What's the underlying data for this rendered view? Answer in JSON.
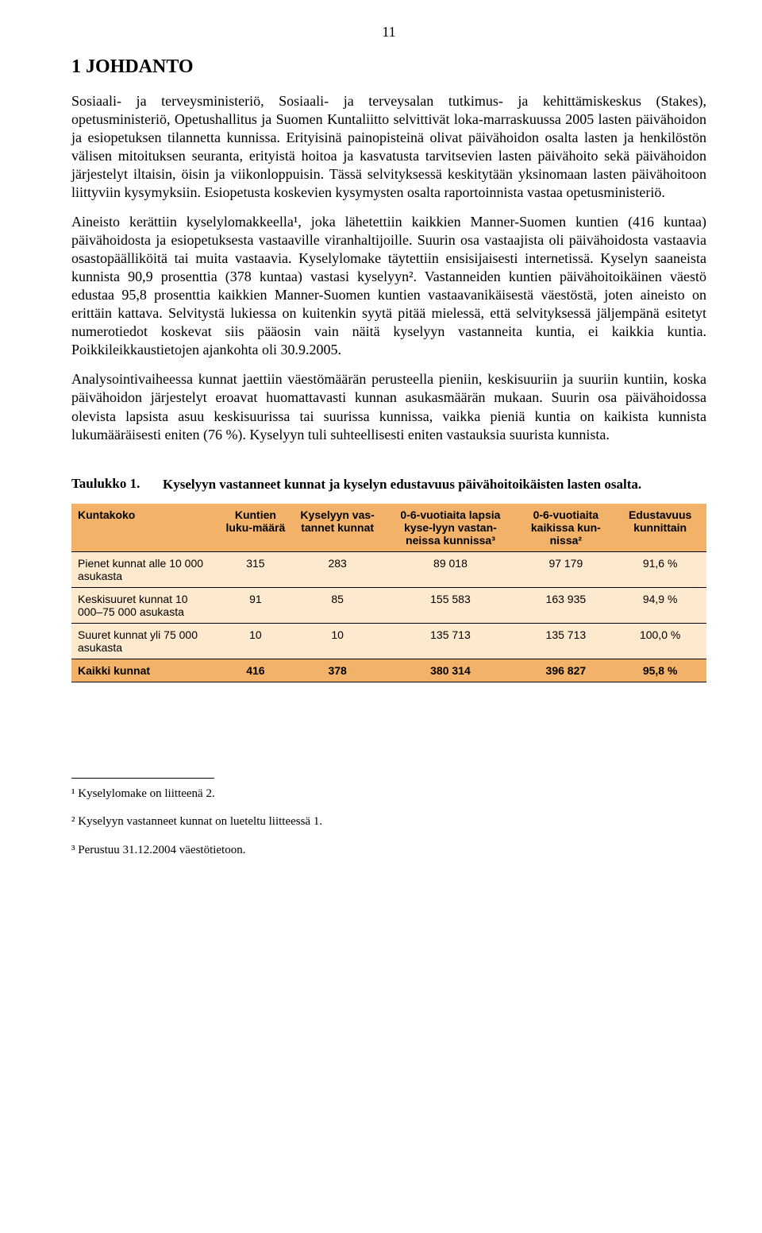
{
  "page_number": "11",
  "heading": "1 JOHDANTO",
  "paragraphs": {
    "p1": "Sosiaali- ja terveysministeriö, Sosiaali- ja terveysalan tutkimus- ja kehittämiskeskus (Stakes), opetusministeriö, Opetushallitus ja Suomen Kuntaliitto selvittivät loka-marraskuussa 2005 lasten päivähoidon ja esiopetuksen tilannetta kunnissa. Erityisinä painopisteinä olivat päivähoidon osalta lasten ja henkilöstön välisen mitoituksen seuranta, erityistä hoitoa ja kasvatusta tarvitsevien lasten päivähoito sekä päivähoidon järjestelyt iltaisin, öisin ja viikonloppuisin. Tässä selvityksessä keskitytään yksinomaan lasten päivähoitoon liittyviin kysymyksiin. Esiopetusta koskevien kysymysten osalta raportoinnista vastaa opetusministeriö.",
    "p2": "Aineisto kerättiin kyselylomakkeella¹, joka lähetettiin kaikkien Manner-Suomen kuntien (416 kuntaa) päivähoidosta ja esiopetuksesta vastaaville viranhaltijoille. Suurin osa vastaajista oli päivähoidosta vastaavia osastopäälliköitä tai muita vastaavia. Kyselylomake täytettiin ensisijaisesti internetissä. Kyselyn saaneista kunnista 90,9 prosenttia (378 kuntaa) vastasi kyselyyn². Vastanneiden kuntien päivähoitoikäinen väestö edustaa 95,8 prosenttia kaikkien Manner-Suomen kuntien vastaavanikäisestä väestöstä, joten aineisto on erittäin kattava. Selvitystä lukiessa on kuitenkin syytä pitää mielessä, että selvityksessä jäljempänä esitetyt numerotiedot koskevat siis pääosin vain näitä kyselyyn vastanneita kuntia, ei kaikkia kuntia. Poikkileikkaustietojen ajankohta oli 30.9.2005.",
    "p3": "Analysointivaiheessa kunnat jaettiin väestömäärän perusteella pieniin, keskisuuriin ja suuriin kuntiin, koska päivähoidon järjestelyt eroavat huomattavasti kunnan asukasmäärän mukaan. Suurin osa päivähoidossa olevista lapsista asuu keskisuurissa tai suurissa kunnissa, vaikka pieniä kuntia on kaikista kunnista lukumääräisesti eniten (76 %). Kyselyyn tuli suhteellisesti eniten vastauksia suurista kunnista."
  },
  "table": {
    "label": "Taulukko 1.",
    "title": "Kyselyyn vastanneet kunnat ja kyselyn edustavuus päivähoitoikäisten lasten osalta.",
    "header_bg": "#f2b26a",
    "body_bg": "#fde9ce",
    "columns": [
      "Kuntakoko",
      "Kuntien luku-määrä",
      "Kyselyyn vas-tannet kunnat",
      "0-6-vuotiaita lapsia kyse-lyyn vastan-neissa kunnissa³",
      "0-6-vuotiaita kaikissa kun-nissa²",
      "Edustavuus kunnittain"
    ],
    "rows": [
      {
        "label": "Pienet kunnat alle 10 000 asukasta",
        "c1": "315",
        "c2": "283",
        "c3": "89 018",
        "c4": "97 179",
        "c5": "91,6 %"
      },
      {
        "label": "Keskisuuret kunnat 10 000–75 000 asukasta",
        "c1": "91",
        "c2": "85",
        "c3": "155 583",
        "c4": "163 935",
        "c5": "94,9 %"
      },
      {
        "label": "Suuret kunnat yli 75 000 asukasta",
        "c1": "10",
        "c2": "10",
        "c3": "135 713",
        "c4": "135 713",
        "c5": "100,0 %"
      },
      {
        "label": "Kaikki kunnat",
        "c1": "416",
        "c2": "378",
        "c3": "380 314",
        "c4": "396 827",
        "c5": "95,8 %"
      }
    ]
  },
  "footnotes": {
    "f1": "¹ Kyselylomake on liitteenä 2.",
    "f2": "² Kyselyyn vastanneet kunnat on lueteltu liitteessä 1.",
    "f3": "³ Perustuu 31.12.2004 väestötietoon."
  }
}
